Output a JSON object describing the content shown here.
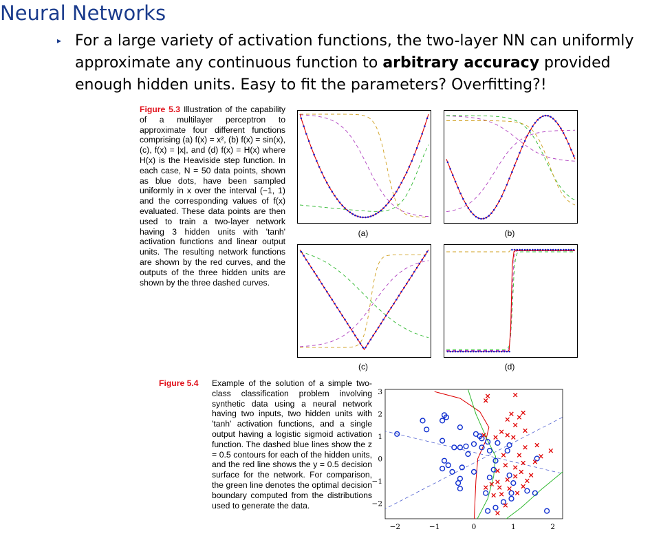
{
  "slide": {
    "title": "Neural Networks",
    "bullet_glyph": "▸",
    "bullet_pre": "For a large variety of activation functions, the two-layer NN can uniformly approximate any continuous function to ",
    "bullet_bold": "arbitrary accuracy",
    "bullet_post": " provided enough hidden units. Easy to fit the parameters? Overfitting?!"
  },
  "figure53": {
    "label": "Figure 5.3",
    "caption": "Illustration of the capability of a multilayer perceptron to approximate four different functions comprising (a) f(x) = x², (b) f(x) = sin(x), (c), f(x) = |x|, and (d) f(x) = H(x) where H(x) is the Heaviside step function. In each case, N = 50 data points, shown as blue dots, have been sampled uniformly in x over the interval (−1, 1) and the corresponding values of f(x) evaluated. These data points are then used to train a two-layer network having 3 hidden units with 'tanh' activation functions and linear output units. The resulting network functions are shown by the red curves, and the outputs of the three hidden units are shown by the three dashed curves.",
    "panel_labels": [
      "(a)",
      "(b)",
      "(c)",
      "(d)"
    ]
  },
  "figure54": {
    "label": "Figure 5.4",
    "caption": "Example of the solution of a simple two-class classification problem involving synthetic data using a neural network having two inputs, two hidden units with 'tanh' activation functions, and a single output having a logistic sigmoid activation function. The dashed blue lines show the z = 0.5 contours for each of the hidden units, and the red line shows the y = 0.5 decision surface for the network. For comparison, the green line denotes the optimal decision boundary computed from the distributions used to generate the data.",
    "x_ticks": [
      "−2",
      "−1",
      "0",
      "1",
      "2"
    ],
    "y_ticks": [
      "3",
      "2",
      "1",
      "0",
      "−1",
      "−2"
    ]
  },
  "colors": {
    "title": "#1a3b8c",
    "figure_label": "#e0101a",
    "data_dots": "#1a1acc",
    "network": "#dd0000",
    "hidden_green": "#2fb82f",
    "hidden_purple": "#b040c0",
    "hidden_orange": "#d0a020",
    "class_o": "#1030d0",
    "class_x": "#e00000"
  }
}
